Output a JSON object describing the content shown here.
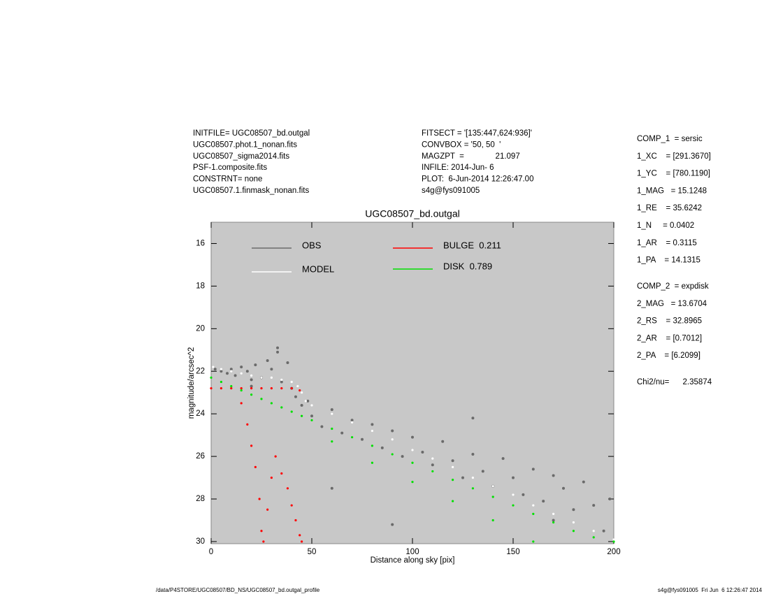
{
  "chart_data": {
    "type": "scatter",
    "title": "UGC08507_bd.outgal",
    "x_label": "Distance along sky [pix]",
    "y_label": "magnitude/arcsec^2",
    "xlim": [
      0,
      200
    ],
    "ylim": [
      30.1,
      15
    ],
    "xticks": [
      0,
      50,
      100,
      150,
      200
    ],
    "yticks": [
      16,
      18,
      20,
      22,
      24,
      26,
      28,
      30
    ],
    "legend": "upper left",
    "header_left": [
      "INITFILE= UGC08507_bd.outgal",
      "UGC08507.phot.1_nonan.fits",
      "UGC08507_sigma2014.fits",
      "PSF-1.composite.fits",
      "CONSTRNT= none",
      "UGC08507.1.finmask_nonan.fits"
    ],
    "header_center": [
      "FITSECT = '[135:447,624:936]'",
      "CONVBOX = '50, 50  '",
      "MAGZPT  =              21.097",
      "INFILE: 2014-Jun- 6",
      "PLOT:  6-Jun-2014 12:26:47.00",
      "s4g@fys091005"
    ],
    "params_1": [
      "COMP_1  = sersic",
      "1_XC    = [291.3670]",
      "1_YC    = [780.1190]",
      "1_MAG   = 15.1248",
      "1_RE    = 35.6242",
      "1_N     = 0.0402",
      "1_AR    = 0.3115",
      "1_PA    = 14.1315"
    ],
    "params_2": [
      "COMP_2  = expdisk",
      "2_MAG   = 13.6704",
      "2_RS    = 32.8965",
      "2_AR    = [0.7012]",
      "2_PA    = [6.2099]"
    ],
    "chi2": "Chi2/nu=      2.35874",
    "footer_left": "/data/P4STORE/UGC08507/BD_NS/UGC08507_bd.outgal_profile",
    "footer_right": "s4g@fys091005  Fri Jun  6 12:26:47 2014",
    "series": [
      {
        "name": "OBS",
        "color": "#6a6a6a",
        "x": [
          2,
          5,
          8,
          10,
          12,
          15,
          18,
          20,
          22,
          25,
          28,
          30,
          33,
          35,
          38,
          40,
          42,
          45,
          48,
          50,
          55,
          60,
          65,
          70,
          75,
          80,
          85,
          90,
          95,
          100,
          105,
          110,
          115,
          120,
          125,
          130,
          135,
          140,
          145,
          150,
          155,
          160,
          165,
          170,
          175,
          180,
          185,
          190,
          195,
          198,
          20,
          33,
          60,
          90,
          130,
          170
        ],
        "values": [
          21.9,
          22.0,
          22.1,
          21.9,
          22.2,
          21.8,
          22.0,
          22.4,
          21.7,
          22.3,
          21.5,
          21.9,
          21.1,
          22.5,
          21.6,
          22.8,
          23.2,
          23.6,
          23.4,
          24.1,
          24.6,
          23.8,
          24.9,
          24.3,
          25.2,
          24.5,
          25.6,
          24.8,
          26.0,
          25.1,
          25.8,
          26.4,
          25.3,
          26.2,
          27.0,
          25.9,
          26.7,
          27.4,
          26.1,
          27.0,
          27.8,
          26.6,
          28.1,
          26.9,
          27.5,
          28.5,
          27.2,
          28.3,
          29.5,
          28.0,
          22.7,
          20.9,
          27.5,
          29.2,
          24.2,
          29.0
        ]
      },
      {
        "name": "MODEL",
        "color": "#ffffff",
        "x": [
          1,
          5,
          10,
          15,
          20,
          25,
          30,
          35,
          40,
          43,
          45,
          47,
          50,
          60,
          70,
          80,
          90,
          100,
          110,
          120,
          130,
          140,
          150,
          160,
          170,
          180,
          190,
          200
        ],
        "values": [
          21.8,
          21.9,
          22.0,
          22.1,
          22.2,
          22.3,
          22.3,
          22.4,
          22.5,
          22.7,
          23.0,
          23.4,
          23.6,
          24.0,
          24.4,
          24.8,
          25.2,
          25.7,
          26.1,
          26.5,
          27.0,
          27.4,
          27.8,
          28.3,
          28.7,
          29.1,
          29.5,
          29.9
        ]
      },
      {
        "name": "BULGE  0.211",
        "color": "#ff0000",
        "x": [
          0,
          5,
          10,
          15,
          20,
          25,
          30,
          35,
          40,
          44,
          15,
          18,
          20,
          22,
          24,
          25,
          26,
          28,
          30,
          32,
          35,
          38,
          40,
          42,
          44,
          45
        ],
        "values": [
          22.8,
          22.8,
          22.8,
          22.8,
          22.8,
          22.8,
          22.8,
          22.8,
          22.8,
          22.9,
          23.5,
          24.5,
          25.5,
          26.5,
          28.0,
          29.5,
          30.0,
          28.5,
          27.0,
          26.0,
          26.8,
          27.5,
          28.3,
          29.0,
          29.7,
          30.0
        ]
      },
      {
        "name": "DISK  0.789",
        "color": "#00e000",
        "x": [
          0,
          5,
          10,
          15,
          20,
          25,
          30,
          35,
          40,
          45,
          50,
          60,
          70,
          80,
          90,
          100,
          110,
          120,
          130,
          140,
          150,
          160,
          170,
          180,
          190,
          200,
          60,
          80,
          100,
          120,
          140,
          160
        ],
        "values": [
          22.3,
          22.5,
          22.7,
          22.9,
          23.1,
          23.3,
          23.5,
          23.7,
          23.9,
          24.1,
          24.3,
          24.7,
          25.1,
          25.5,
          25.9,
          26.3,
          26.7,
          27.1,
          27.5,
          27.9,
          28.3,
          28.7,
          29.1,
          29.5,
          29.8,
          30.0,
          25.3,
          26.3,
          27.2,
          28.1,
          29.0,
          30.0
        ]
      }
    ]
  }
}
